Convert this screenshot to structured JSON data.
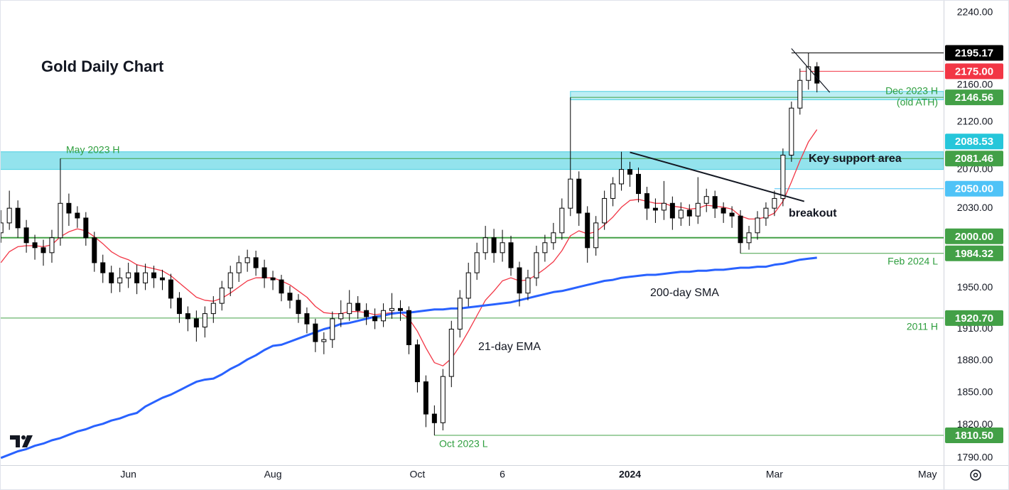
{
  "chart_data": {
    "type": "candlestick",
    "title": "Gold Daily Chart",
    "log_scale": true,
    "grid": false,
    "ylim": [
      1783.5,
      2254.5
    ],
    "yticks": [
      {
        "value": 1790,
        "label": "1790.00"
      },
      {
        "value": 1820,
        "label": "1820.00"
      },
      {
        "value": 1850,
        "label": "1850.00"
      },
      {
        "value": 1880,
        "label": "1880.00"
      },
      {
        "value": 1910,
        "label": "1910.00"
      },
      {
        "value": 1950,
        "label": "1950.00"
      },
      {
        "value": 2030,
        "label": "2030.00"
      },
      {
        "value": 2070,
        "label": "2070.00"
      },
      {
        "value": 2120,
        "label": "2120.00"
      },
      {
        "value": 2160,
        "label": "2160.00"
      },
      {
        "value": 2240,
        "label": "2240.00"
      }
    ],
    "categories": [
      null,
      null,
      null,
      null,
      null,
      null,
      null,
      null,
      null,
      null,
      null,
      null,
      null,
      null,
      null,
      "Jun",
      null,
      null,
      null,
      null,
      null,
      null,
      null,
      null,
      null,
      null,
      null,
      null,
      null,
      null,
      null,
      null,
      "Aug",
      null,
      null,
      null,
      null,
      null,
      null,
      null,
      null,
      null,
      null,
      null,
      null,
      null,
      null,
      null,
      null,
      "Oct",
      null,
      null,
      null,
      null,
      null,
      null,
      null,
      null,
      null,
      "6",
      null,
      null,
      null,
      null,
      null,
      null,
      null,
      null,
      null,
      null,
      null,
      null,
      null,
      null,
      "2024",
      null,
      null,
      null,
      null,
      null,
      null,
      null,
      null,
      null,
      null,
      null,
      null,
      null,
      null,
      null,
      null,
      "Mar",
      null,
      null,
      null,
      null,
      null,
      null,
      null,
      null,
      null,
      null,
      null,
      null,
      null,
      null,
      null,
      null,
      null,
      "May",
      null
    ],
    "candle_colors": {
      "up": "#ffffff",
      "down": "#000000",
      "outline": "#000000"
    },
    "open": [
      2005,
      2015,
      2030,
      2010,
      1995,
      1990,
      1985,
      2000,
      2035,
      2025,
      2020,
      2000,
      1975,
      1965,
      1955,
      1960,
      1965,
      1955,
      1965,
      1960,
      1958,
      1940,
      1925,
      1920,
      1912,
      1925,
      1935,
      1950,
      1965,
      1975,
      1980,
      1970,
      1960,
      1958,
      1945,
      1938,
      1925,
      1915,
      1898,
      1900,
      1920,
      1925,
      1935,
      1928,
      1922,
      1918,
      1928,
      1930,
      1928,
      1895,
      1860,
      1830,
      1822,
      1865,
      1910,
      1940,
      1965,
      1985,
      2000,
      1985,
      1995,
      1970,
      1945,
      1960,
      1985,
      1995,
      2005,
      2030,
      2060,
      2025,
      1990,
      2015,
      2040,
      2055,
      2070,
      2065,
      2045,
      2030,
      2028,
      2035,
      2020,
      2028,
      2022,
      2035,
      2042,
      2030,
      2025,
      2022,
      1995,
      2005,
      2020,
      2030,
      2040,
      2085,
      2135,
      2165,
      2180,
      null,
      null,
      null,
      null,
      null,
      null,
      null,
      null,
      null,
      null,
      null,
      null,
      null,
      null
    ],
    "high": [
      2028,
      2048,
      2038,
      2018,
      2003,
      1998,
      2008,
      2081.46,
      2045,
      2032,
      2026,
      2006,
      1983,
      1972,
      1970,
      1975,
      1973,
      1974,
      1972,
      1968,
      1964,
      1946,
      1932,
      1928,
      1932,
      1942,
      1957,
      1972,
      1982,
      1988,
      1987,
      1978,
      1967,
      1963,
      1952,
      1944,
      1931,
      1920,
      1907,
      1927,
      1938,
      1948,
      1942,
      1935,
      1930,
      1935,
      1945,
      1938,
      1932,
      1900,
      1866,
      1838,
      1872,
      1918,
      1948,
      1975,
      1995,
      2012,
      2009,
      2008,
      2002,
      1976,
      1968,
      1992,
      2003,
      2015,
      2040,
      2146.56,
      2068,
      2032,
      2022,
      2048,
      2062,
      2088.53,
      2078,
      2072,
      2052,
      2040,
      2058,
      2042,
      2036,
      2034,
      2062,
      2050,
      2048,
      2036,
      2032,
      2028,
      2012,
      2027,
      2036,
      2048,
      2092,
      2142,
      2178,
      2195.17,
      2185,
      null,
      null,
      null,
      null,
      null,
      null,
      null,
      null,
      null,
      null,
      null,
      null,
      null,
      null
    ],
    "low": [
      1995,
      2008,
      2000,
      1985,
      1978,
      1972,
      1975,
      1992,
      2012,
      2010,
      1992,
      1966,
      1955,
      1945,
      1946,
      1950,
      1944,
      1948,
      1950,
      1948,
      1930,
      1916,
      1908,
      1898,
      1902,
      1916,
      1928,
      1942,
      1956,
      1966,
      1962,
      1950,
      1948,
      1937,
      1930,
      1916,
      1906,
      1888,
      1886,
      1892,
      1912,
      1918,
      1920,
      1914,
      1910,
      1912,
      1920,
      1918,
      1886,
      1850,
      1818,
      1810.5,
      1815,
      1855,
      1902,
      1932,
      1958,
      1978,
      1975,
      1976,
      1962,
      1932,
      1938,
      1952,
      1976,
      1988,
      1998,
      2022,
      2012,
      1975,
      1982,
      2008,
      2032,
      2048,
      2052,
      2036,
      2018,
      2015,
      2018,
      2008,
      2012,
      2012,
      2014,
      2026,
      2020,
      2015,
      2010,
      1984.32,
      1988,
      1998,
      2012,
      2022,
      2032,
      2078,
      2128,
      2155,
      2152,
      null,
      null,
      null,
      null,
      null,
      null,
      null,
      null,
      null,
      null,
      null,
      null,
      null,
      null
    ],
    "close": [
      2015,
      2030,
      2010,
      1995,
      1990,
      1985,
      2000,
      2035,
      2025,
      2020,
      2000,
      1975,
      1965,
      1955,
      1960,
      1965,
      1955,
      1965,
      1960,
      1958,
      1940,
      1925,
      1920,
      1912,
      1925,
      1935,
      1950,
      1965,
      1975,
      1980,
      1970,
      1960,
      1958,
      1945,
      1938,
      1925,
      1915,
      1898,
      1900,
      1920,
      1925,
      1935,
      1928,
      1922,
      1918,
      1928,
      1930,
      1928,
      1895,
      1860,
      1830,
      1822,
      1865,
      1910,
      1940,
      1965,
      1985,
      2000,
      1985,
      1995,
      1970,
      1945,
      1960,
      1985,
      1995,
      2005,
      2030,
      2060,
      2025,
      1990,
      2015,
      2040,
      2055,
      2070,
      2065,
      2045,
      2030,
      2028,
      2035,
      2020,
      2028,
      2022,
      2035,
      2042,
      2030,
      2025,
      2022,
      1995,
      2005,
      2020,
      2030,
      2040,
      2085,
      2135,
      2165,
      2180,
      2162,
      null,
      null,
      null,
      null,
      null,
      null,
      null,
      null,
      null,
      null,
      null,
      null,
      null,
      null
    ],
    "series": [
      {
        "name": "21-day EMA",
        "color": "#f23645",
        "values": [
          1975,
          1986,
          1991,
          1992,
          1992,
          1991,
          1993,
          2001,
          2006,
          2009,
          2007,
          2001,
          1994,
          1986,
          1981,
          1978,
          1973,
          1971,
          1969,
          1967,
          1962,
          1955,
          1948,
          1941,
          1938,
          1937,
          1940,
          1945,
          1951,
          1957,
          1960,
          1960,
          1960,
          1957,
          1953,
          1947,
          1941,
          1932,
          1926,
          1925,
          1925,
          1927,
          1927,
          1926,
          1924,
          1925,
          1926,
          1926,
          1920,
          1908,
          1892,
          1878,
          1875,
          1882,
          1894,
          1908,
          1923,
          1938,
          1947,
          1957,
          1960,
          1957,
          1958,
          1963,
          1969,
          1976,
          1987,
          2002,
          2007,
          2004,
          2006,
          2013,
          2021,
          2031,
          2038,
          2039,
          2037,
          2035,
          2035,
          2032,
          2031,
          2029,
          2030,
          2033,
          2032,
          2031,
          2029,
          2022,
          2019,
          2019,
          2021,
          2025,
          2037,
          2057,
          2079,
          2099,
          2112,
          null,
          null,
          null,
          null,
          null,
          null,
          null,
          null,
          null,
          null,
          null,
          null,
          null,
          null
        ]
      },
      {
        "name": "200-day SMA",
        "color": "#2962ff",
        "values": [
          1790,
          1793,
          1796,
          1798,
          1801,
          1803,
          1806,
          1808,
          1811,
          1814,
          1816,
          1819,
          1821,
          1824,
          1826,
          1829,
          1831,
          1837,
          1841,
          1845,
          1848,
          1852,
          1856,
          1860,
          1862,
          1863,
          1867,
          1872,
          1876,
          1881,
          1885,
          1890,
          1894,
          1895,
          1898,
          1901,
          1904,
          1907,
          1910,
          1912,
          1915,
          1916,
          1918,
          1920,
          1922,
          1923,
          1925,
          1926,
          1926,
          1927,
          1928,
          1929,
          1929,
          1930,
          1930,
          1931,
          1932,
          1933,
          1934,
          1935,
          1936,
          1938,
          1940,
          1942,
          1944,
          1946,
          1947,
          1949,
          1951,
          1953,
          1955,
          1957,
          1958,
          1960,
          1961,
          1962,
          1963,
          1963,
          1964,
          1965,
          1966,
          1966,
          1967,
          1967,
          1968,
          1968,
          1969,
          1970,
          1970,
          1971,
          1971,
          1973,
          1974,
          1976,
          1978,
          1979,
          1980,
          null,
          null,
          null,
          null,
          null,
          null,
          null,
          null,
          null,
          null,
          null,
          null,
          null,
          null
        ]
      }
    ],
    "zones": [
      {
        "from": 2070,
        "to": 2088.53,
        "color": "#80deea",
        "label": "Key support area"
      },
      {
        "from": 2144,
        "to": 2153,
        "start": 67,
        "color": "#b2ebf2"
      }
    ],
    "trendlines": [
      {
        "from": [
          74,
          2088
        ],
        "to": [
          94.5,
          2037
        ],
        "label": "breakout"
      },
      {
        "from": [
          93,
          2200
        ],
        "to": [
          97.5,
          2152
        ]
      }
    ],
    "levels": [
      {
        "value": 2195.17,
        "label": "2195.17",
        "color": "#000000",
        "start": 93
      },
      {
        "value": 2175,
        "label": "2175.00",
        "color": "#f23645",
        "start": 94
      },
      {
        "value": 2146.56,
        "label": "2146.56",
        "color": "#43a047",
        "start": 67,
        "note": "Dec 2023 H",
        "note2": "(old ATH)"
      },
      {
        "value": 2088.53,
        "label": "2088.53",
        "color": "#26c6da",
        "line": false
      },
      {
        "value": 2081.46,
        "label": "2081.46",
        "color": "#43a047",
        "start": 7,
        "note": "May 2023 H"
      },
      {
        "value": 2050,
        "label": "2050.00",
        "color": "#4fc3f7",
        "start": 91
      },
      {
        "value": 2000,
        "label": "2000.00",
        "color": "#43a047",
        "emphasis": true
      },
      {
        "value": 1984.32,
        "label": "1984.32",
        "color": "#43a047",
        "start": 87,
        "note": "Feb 2024 L"
      },
      {
        "value": 1920.7,
        "label": "1920.70",
        "color": "#43a047",
        "note": "2011 H"
      },
      {
        "value": 1810.5,
        "label": "1810.50",
        "color": "#43a047",
        "start": 51,
        "note": "Oct 2023 L"
      }
    ]
  }
}
